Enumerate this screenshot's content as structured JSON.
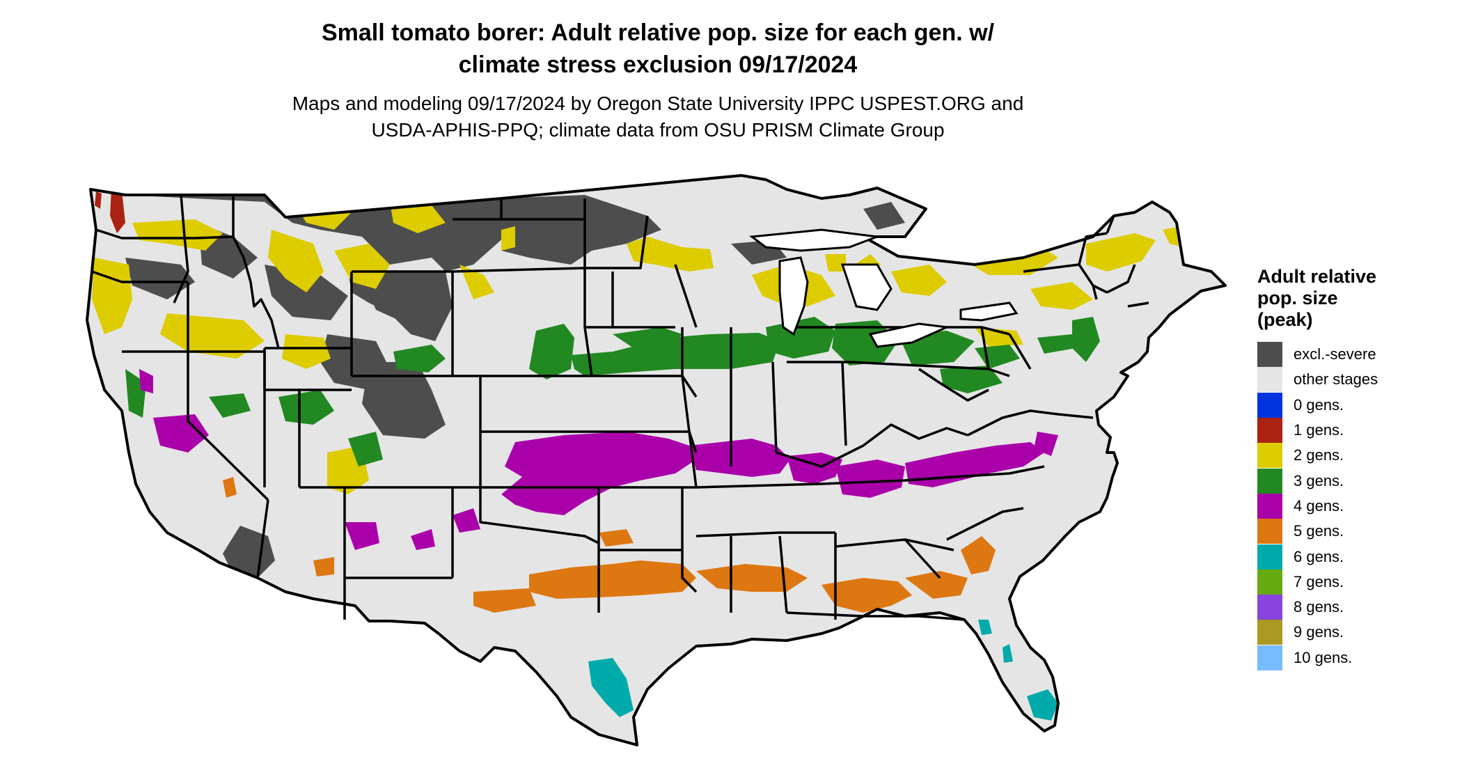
{
  "title": {
    "line1": "Small tomato borer: Adult relative pop. size for each gen. w/",
    "line2": "climate stress exclusion 09/17/2024"
  },
  "subtitle": {
    "line1": "Maps and modeling 09/17/2024 by Oregon State University IPPC USPEST.ORG and",
    "line2": "USDA-APHIS-PPQ; climate data from OSU PRISM Climate Group"
  },
  "legend": {
    "title_lines": [
      "Adult relative",
      "pop. size",
      "(peak)"
    ],
    "items": [
      {
        "label": "excl.-severe",
        "color": "#4d4d4d"
      },
      {
        "label": "other stages",
        "color": "#e5e5e5"
      },
      {
        "label": "0 gens.",
        "color": "#0033dd"
      },
      {
        "label": "1 gens.",
        "color": "#aa2211"
      },
      {
        "label": "2 gens.",
        "color": "#ddcc00"
      },
      {
        "label": "3 gens.",
        "color": "#228822"
      },
      {
        "label": "4 gens.",
        "color": "#aa00aa"
      },
      {
        "label": "5 gens.",
        "color": "#dd7711"
      },
      {
        "label": "6 gens.",
        "color": "#00aaaa"
      },
      {
        "label": "7 gens.",
        "color": "#66aa11"
      },
      {
        "label": "8 gens.",
        "color": "#8844dd"
      },
      {
        "label": "9 gens.",
        "color": "#aa9922"
      },
      {
        "label": "10 gens.",
        "color": "#77bbff"
      }
    ]
  },
  "map": {
    "background_color": "#e5e5e5",
    "border_color": "#000000"
  }
}
